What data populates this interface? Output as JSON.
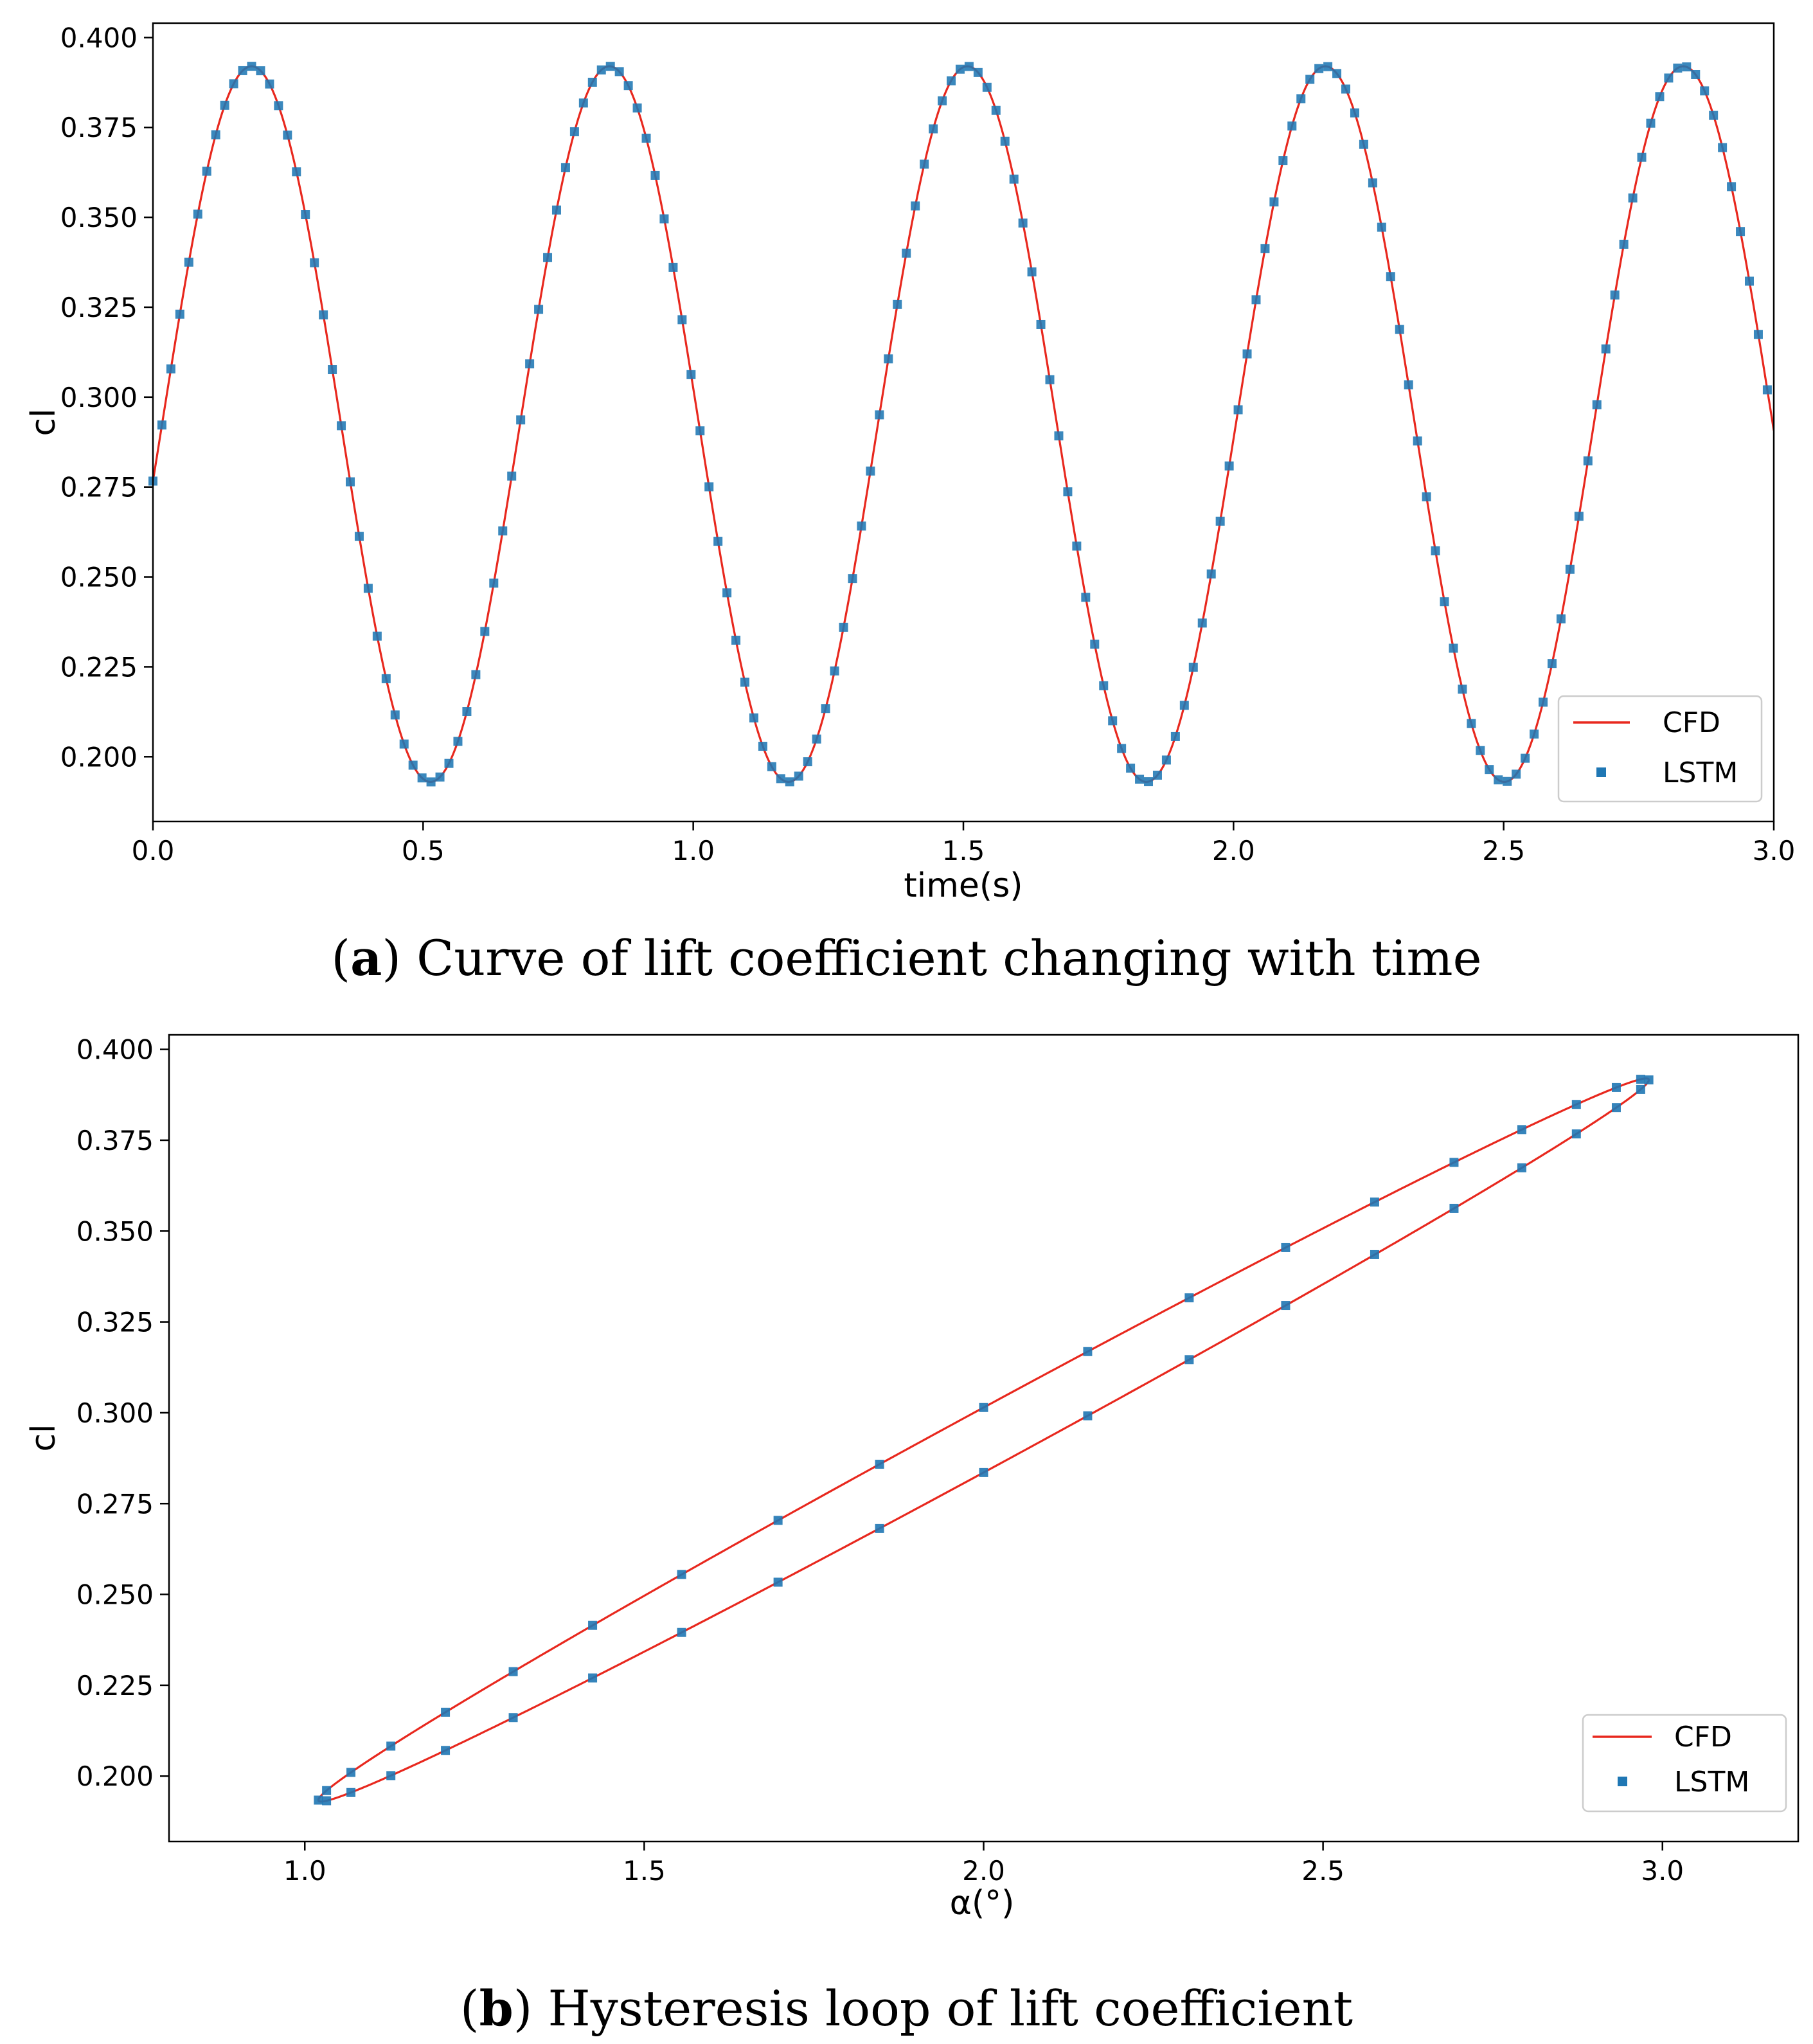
{
  "colors": {
    "cfd": "#e8281e",
    "lstm": "#1f77b4",
    "axis": "#000000",
    "legend_border": "#cccccc"
  },
  "caption_a": {
    "label": "a",
    "text": "Curve of lift coefficient changing with time"
  },
  "caption_b": {
    "label": "b",
    "text": "Hysteresis loop of lift coefficient"
  },
  "chart_data": [
    {
      "type": "line",
      "title": "",
      "xlabel": "time(s)",
      "ylabel": "cl",
      "xlim": [
        0.0,
        3.0
      ],
      "ylim": [
        0.182,
        0.404
      ],
      "xticks": [
        0.0,
        0.5,
        1.0,
        1.5,
        2.0,
        2.5,
        3.0
      ],
      "xtick_labels": [
        "0.0",
        "0.5",
        "1.0",
        "1.5",
        "2.0",
        "2.5",
        "3.0"
      ],
      "yticks": [
        0.2,
        0.225,
        0.25,
        0.275,
        0.3,
        0.325,
        0.35,
        0.375,
        0.4
      ],
      "ytick_labels": [
        "0.200",
        "0.225",
        "0.250",
        "0.275",
        "0.300",
        "0.325",
        "0.350",
        "0.375",
        "0.400"
      ],
      "legend_position": "bottom-right",
      "model": {
        "mean": 0.2925,
        "amplitude": 0.0995,
        "period_s": 0.6625,
        "phase_rad": -0.16,
        "time_start": 0.0,
        "time_end": 3.0,
        "sample_step_s": 0.0166
      },
      "series": [
        {
          "name": "CFD",
          "style": "line"
        },
        {
          "name": "LSTM",
          "style": "square-marker"
        }
      ]
    },
    {
      "type": "line",
      "title": "",
      "xlabel": "α(°)",
      "ylabel": "cl",
      "xlim": [
        0.8,
        3.2
      ],
      "ylim": [
        0.182,
        0.404
      ],
      "xticks": [
        1.0,
        1.5,
        2.0,
        2.5,
        3.0
      ],
      "xtick_labels": [
        "1.0",
        "1.5",
        "2.0",
        "2.5",
        "3.0"
      ],
      "yticks": [
        0.2,
        0.225,
        0.25,
        0.275,
        0.3,
        0.325,
        0.35,
        0.375,
        0.4
      ],
      "ytick_labels": [
        "0.200",
        "0.225",
        "0.250",
        "0.275",
        "0.300",
        "0.325",
        "0.350",
        "0.375",
        "0.400"
      ],
      "legend_position": "bottom-right",
      "model": {
        "alpha_mean": 2.0,
        "alpha_amplitude": 0.98,
        "cl_mean": 0.2925,
        "cl_amplitude": 0.0995,
        "phase_lag_rad": 0.09,
        "num_samples": 40
      },
      "series": [
        {
          "name": "CFD",
          "style": "line"
        },
        {
          "name": "LSTM",
          "style": "square-marker"
        }
      ]
    }
  ]
}
